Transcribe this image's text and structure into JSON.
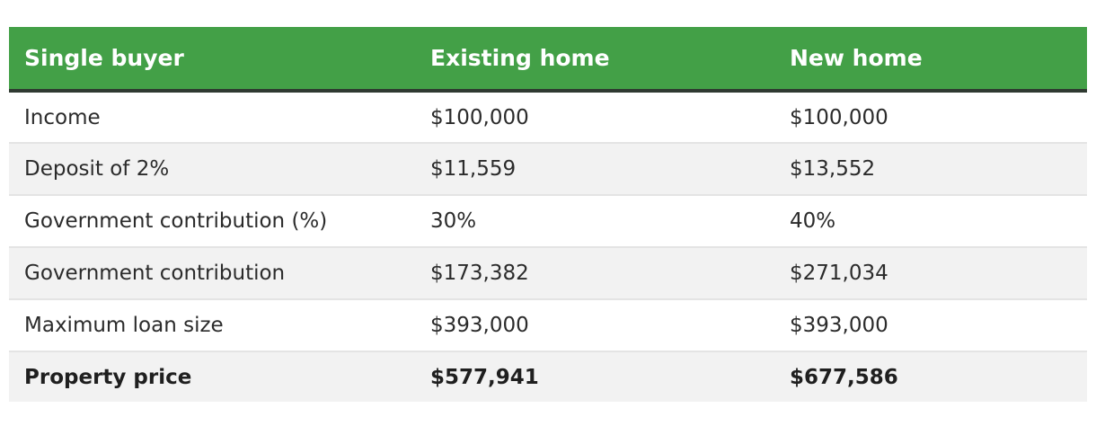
{
  "table": {
    "headers": [
      "Single buyer",
      "Existing home",
      "New home"
    ],
    "rows": [
      [
        "Income",
        "$100,000",
        "$100,000"
      ],
      [
        "Deposit of 2%",
        "$11,559",
        "$13,552"
      ],
      [
        "Government contribution (%)",
        "30%",
        "40%"
      ],
      [
        "Government contribution",
        "$173,382",
        "$271,034"
      ],
      [
        "Maximum loan size",
        "$393,000",
        "$393,000"
      ],
      [
        "Property price",
        "$577,941",
        "$677,586"
      ]
    ]
  },
  "colors": {
    "header_background": "#43a047",
    "header_text": "#ffffff",
    "header_border": "#2f3a31",
    "stripe": "#f2f2f2",
    "row_divider": "#e4e4e4"
  }
}
